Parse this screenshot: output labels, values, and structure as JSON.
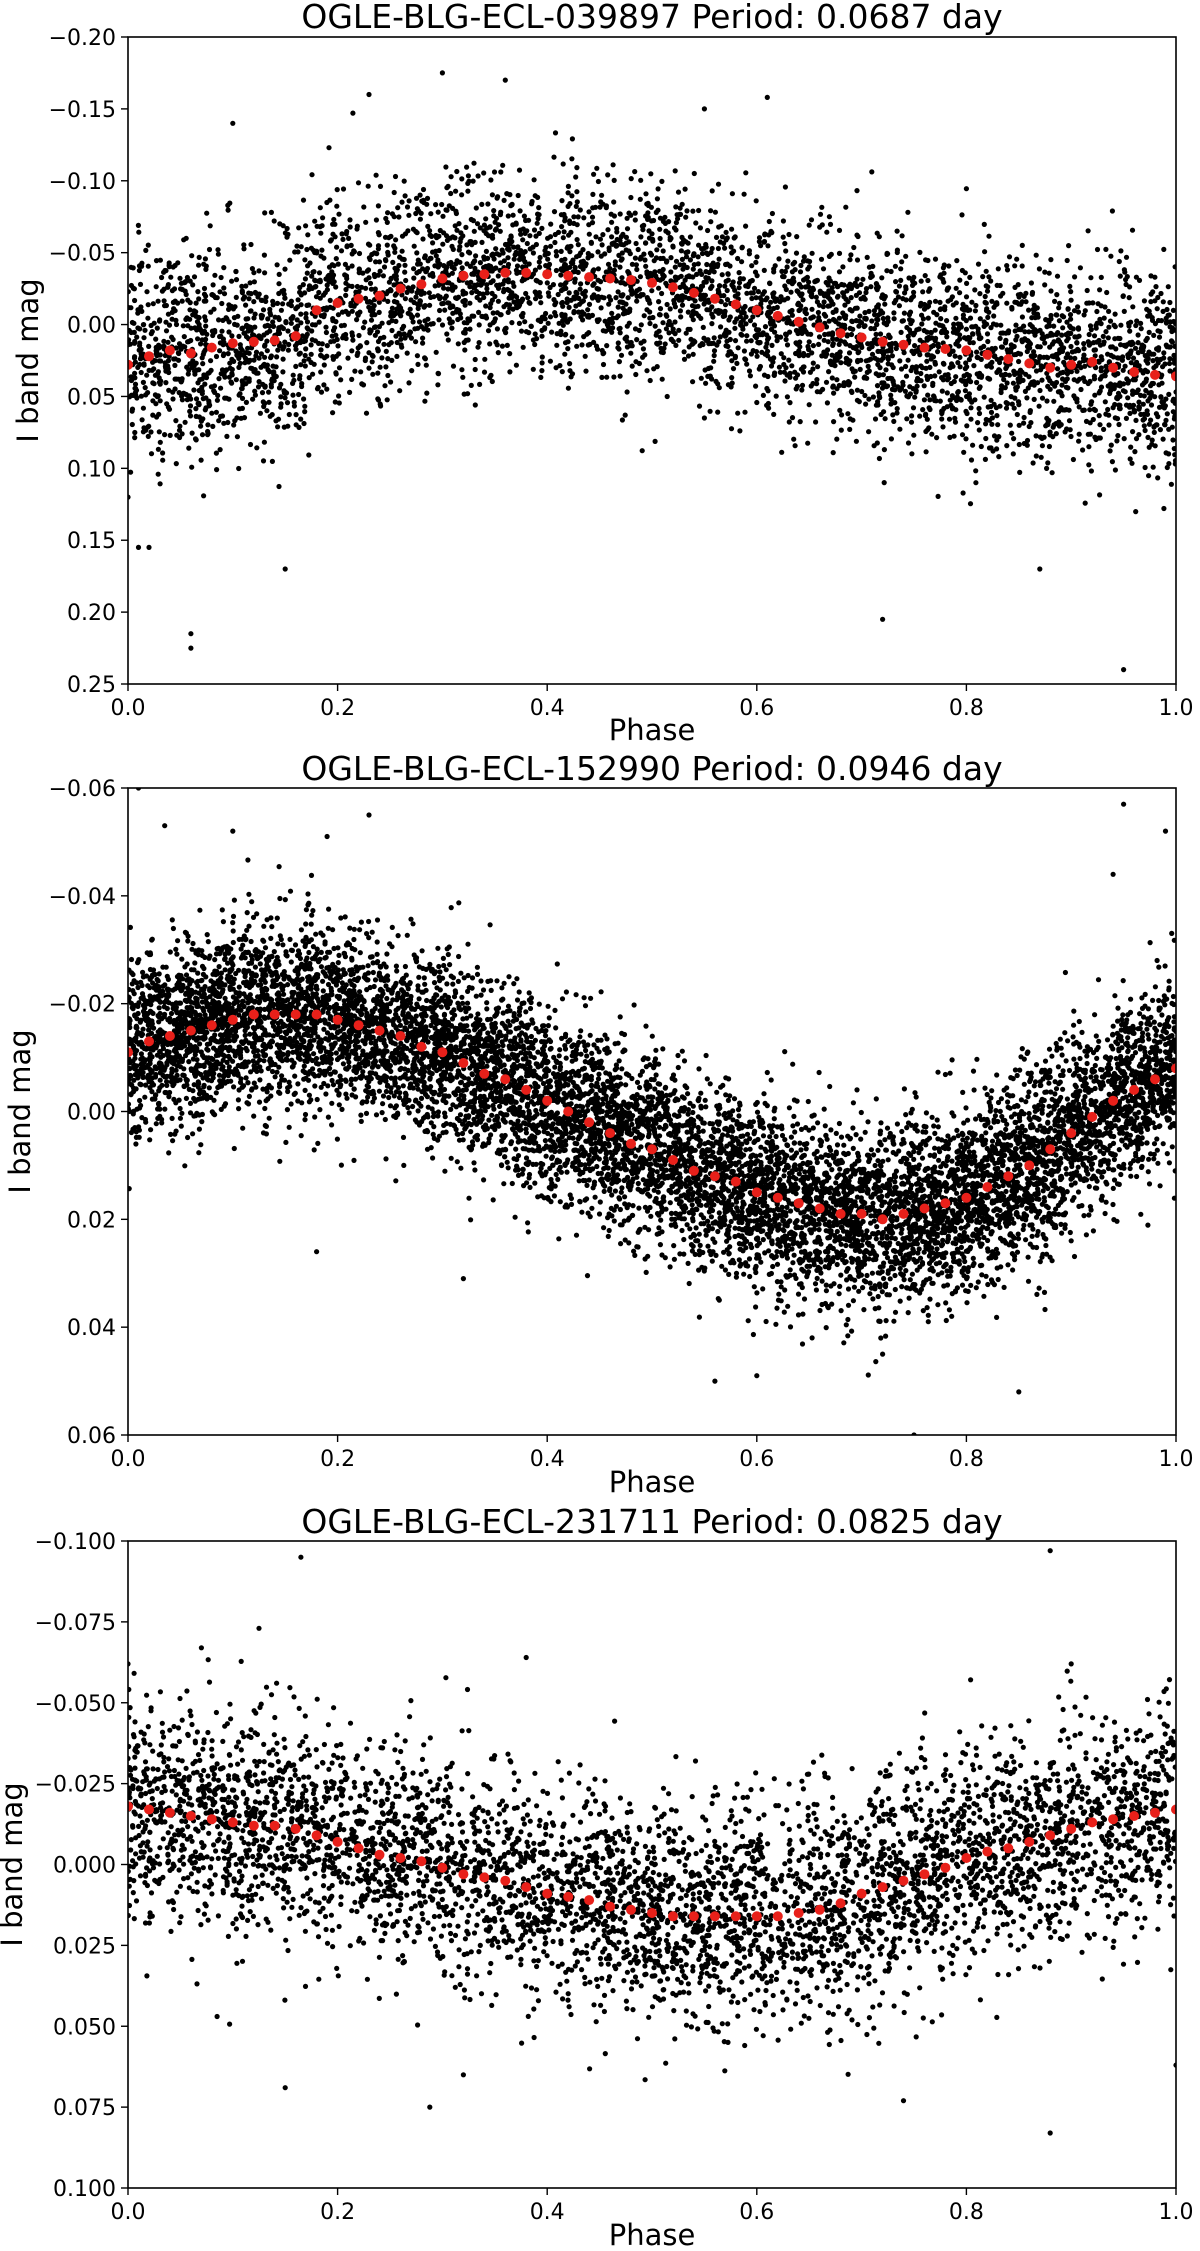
{
  "chart_data": [
    {
      "type": "scatter",
      "title": "OGLE-BLG-ECL-039897 Period: 0.0687 day",
      "xlabel": "Phase",
      "ylabel": "I band mag",
      "xlim": [
        0.0,
        1.0
      ],
      "ylim": [
        -0.2,
        0.25
      ],
      "y_inverted": true,
      "xticks": [
        0.0,
        0.2,
        0.4,
        0.6,
        0.8,
        1.0
      ],
      "xtick_labels": [
        "0.0",
        "0.2",
        "0.4",
        "0.6",
        "0.8",
        "1.0"
      ],
      "yticks": [
        -0.2,
        -0.15,
        -0.1,
        -0.05,
        0.0,
        0.05,
        0.1,
        0.15,
        0.2,
        0.25
      ],
      "ytick_labels": [
        "−0.20",
        "−0.15",
        "−0.10",
        "−0.05",
        "0.00",
        "0.05",
        "0.10",
        "0.15",
        "0.20",
        "0.25"
      ],
      "grid": false,
      "raw_points": {
        "color": "#000000",
        "approx_count": 4800,
        "scatter_std": 0.035,
        "outliers": [
          [
            0.06,
            0.215
          ],
          [
            0.06,
            0.225
          ],
          [
            0.95,
            0.24
          ],
          [
            0.72,
            0.205
          ],
          [
            0.3,
            -0.175
          ],
          [
            0.36,
            -0.17
          ],
          [
            0.23,
            -0.16
          ],
          [
            0.61,
            -0.158
          ],
          [
            0.55,
            -0.15
          ],
          [
            0.01,
            0.155
          ],
          [
            0.02,
            0.155
          ],
          [
            0.15,
            0.17
          ],
          [
            0.87,
            0.17
          ],
          [
            0.0,
            0.12
          ],
          [
            0.1,
            -0.14
          ]
        ]
      },
      "binned_means": {
        "color": "#e8201a",
        "x": [
          0.0,
          0.02,
          0.04,
          0.06,
          0.08,
          0.1,
          0.12,
          0.14,
          0.16,
          0.18,
          0.2,
          0.22,
          0.24,
          0.26,
          0.28,
          0.3,
          0.32,
          0.34,
          0.36,
          0.38,
          0.4,
          0.42,
          0.44,
          0.46,
          0.48,
          0.5,
          0.52,
          0.54,
          0.56,
          0.58,
          0.6,
          0.62,
          0.64,
          0.66,
          0.68,
          0.7,
          0.72,
          0.74,
          0.76,
          0.78,
          0.8,
          0.82,
          0.84,
          0.86,
          0.88,
          0.9,
          0.92,
          0.94,
          0.96,
          0.98,
          1.0
        ],
        "y": [
          0.028,
          0.022,
          0.018,
          0.02,
          0.016,
          0.013,
          0.012,
          0.011,
          0.008,
          -0.01,
          -0.015,
          -0.018,
          -0.02,
          -0.025,
          -0.028,
          -0.032,
          -0.034,
          -0.035,
          -0.036,
          -0.036,
          -0.035,
          -0.034,
          -0.033,
          -0.032,
          -0.031,
          -0.029,
          -0.026,
          -0.022,
          -0.018,
          -0.014,
          -0.01,
          -0.006,
          -0.002,
          0.002,
          0.006,
          0.009,
          0.012,
          0.014,
          0.016,
          0.017,
          0.018,
          0.021,
          0.024,
          0.027,
          0.03,
          0.028,
          0.026,
          0.03,
          0.033,
          0.035,
          0.036
        ]
      }
    },
    {
      "type": "scatter",
      "title": "OGLE-BLG-ECL-152990 Period: 0.0946 day",
      "xlabel": "Phase",
      "ylabel": "I band mag",
      "xlim": [
        0.0,
        1.0
      ],
      "ylim": [
        -0.06,
        0.06
      ],
      "y_inverted": true,
      "xticks": [
        0.0,
        0.2,
        0.4,
        0.6,
        0.8,
        1.0
      ],
      "xtick_labels": [
        "0.0",
        "0.2",
        "0.4",
        "0.6",
        "0.8",
        "1.0"
      ],
      "yticks": [
        -0.06,
        -0.04,
        -0.02,
        0.0,
        0.02,
        0.04,
        0.06
      ],
      "ytick_labels": [
        "−0.06",
        "−0.04",
        "−0.02",
        "0.00",
        "0.02",
        "0.04",
        "0.06"
      ],
      "grid": false,
      "raw_points": {
        "color": "#000000",
        "approx_count": 9500,
        "scatter_std": 0.0085,
        "outliers": [
          [
            0.01,
            -0.06
          ],
          [
            0.035,
            -0.053
          ],
          [
            0.1,
            -0.052
          ],
          [
            0.19,
            -0.051
          ],
          [
            0.23,
            -0.055
          ],
          [
            0.95,
            -0.057
          ],
          [
            0.99,
            -0.052
          ],
          [
            0.85,
            0.052
          ],
          [
            0.75,
            0.06
          ],
          [
            0.72,
            0.045
          ],
          [
            0.56,
            0.05
          ],
          [
            0.6,
            0.049
          ],
          [
            0.32,
            0.031
          ],
          [
            0.18,
            0.026
          ],
          [
            0.94,
            -0.044
          ]
        ]
      },
      "binned_means": {
        "color": "#e8201a",
        "x": [
          0.0,
          0.02,
          0.04,
          0.06,
          0.08,
          0.1,
          0.12,
          0.14,
          0.16,
          0.18,
          0.2,
          0.22,
          0.24,
          0.26,
          0.28,
          0.3,
          0.32,
          0.34,
          0.36,
          0.38,
          0.4,
          0.42,
          0.44,
          0.46,
          0.48,
          0.5,
          0.52,
          0.54,
          0.56,
          0.58,
          0.6,
          0.62,
          0.64,
          0.66,
          0.68,
          0.7,
          0.72,
          0.74,
          0.76,
          0.78,
          0.8,
          0.82,
          0.84,
          0.86,
          0.88,
          0.9,
          0.92,
          0.94,
          0.96,
          0.98,
          1.0
        ],
        "y": [
          -0.011,
          -0.013,
          -0.014,
          -0.015,
          -0.016,
          -0.017,
          -0.018,
          -0.018,
          -0.018,
          -0.018,
          -0.017,
          -0.016,
          -0.015,
          -0.014,
          -0.012,
          -0.011,
          -0.009,
          -0.007,
          -0.006,
          -0.004,
          -0.002,
          0.0,
          0.002,
          0.004,
          0.006,
          0.007,
          0.009,
          0.011,
          0.012,
          0.013,
          0.015,
          0.016,
          0.017,
          0.018,
          0.019,
          0.019,
          0.02,
          0.019,
          0.018,
          0.017,
          0.016,
          0.014,
          0.012,
          0.01,
          0.007,
          0.004,
          0.001,
          -0.002,
          -0.004,
          -0.006,
          -0.008
        ]
      }
    },
    {
      "type": "scatter",
      "title": "OGLE-BLG-ECL-231711 Period: 0.0825 day",
      "xlabel": "Phase",
      "ylabel": "I band mag",
      "xlim": [
        0.0,
        1.0
      ],
      "ylim": [
        -0.1,
        0.1
      ],
      "y_inverted": true,
      "xticks": [
        0.0,
        0.2,
        0.4,
        0.6,
        0.8,
        1.0
      ],
      "xtick_labels": [
        "0.0",
        "0.2",
        "0.4",
        "0.6",
        "0.8",
        "1.0"
      ],
      "yticks": [
        -0.1,
        -0.075,
        -0.05,
        -0.025,
        0.0,
        0.025,
        0.05,
        0.075,
        0.1
      ],
      "ytick_labels": [
        "−0.100",
        "−0.075",
        "−0.050",
        "−0.025",
        "0.000",
        "0.025",
        "0.050",
        "0.075",
        "0.100"
      ],
      "grid": false,
      "raw_points": {
        "color": "#000000",
        "approx_count": 4800,
        "scatter_std": 0.017,
        "outliers": [
          [
            0.165,
            -0.095
          ],
          [
            0.88,
            -0.097
          ],
          [
            0.125,
            -0.073
          ],
          [
            0.07,
            -0.067
          ],
          [
            0.0,
            -0.062
          ],
          [
            0.38,
            -0.064
          ],
          [
            0.9,
            -0.062
          ],
          [
            0.88,
            0.083
          ],
          [
            0.15,
            0.069
          ],
          [
            0.74,
            0.073
          ],
          [
            0.32,
            0.065
          ],
          [
            1.0,
            0.062
          ],
          [
            0.085,
            0.047
          ]
        ]
      },
      "binned_means": {
        "color": "#e8201a",
        "x": [
          0.0,
          0.02,
          0.04,
          0.06,
          0.08,
          0.1,
          0.12,
          0.14,
          0.16,
          0.18,
          0.2,
          0.22,
          0.24,
          0.26,
          0.28,
          0.3,
          0.32,
          0.34,
          0.36,
          0.38,
          0.4,
          0.42,
          0.44,
          0.46,
          0.48,
          0.5,
          0.52,
          0.54,
          0.56,
          0.58,
          0.6,
          0.62,
          0.64,
          0.66,
          0.68,
          0.7,
          0.72,
          0.74,
          0.76,
          0.78,
          0.8,
          0.82,
          0.84,
          0.86,
          0.88,
          0.9,
          0.92,
          0.94,
          0.96,
          0.98,
          1.0
        ],
        "y": [
          -0.018,
          -0.017,
          -0.016,
          -0.015,
          -0.014,
          -0.013,
          -0.012,
          -0.012,
          -0.011,
          -0.009,
          -0.007,
          -0.005,
          -0.003,
          -0.002,
          -0.001,
          0.001,
          0.003,
          0.004,
          0.005,
          0.007,
          0.009,
          0.01,
          0.011,
          0.013,
          0.014,
          0.015,
          0.016,
          0.016,
          0.016,
          0.016,
          0.016,
          0.016,
          0.015,
          0.014,
          0.012,
          0.009,
          0.007,
          0.005,
          0.003,
          0.001,
          -0.002,
          -0.004,
          -0.005,
          -0.007,
          -0.009,
          -0.011,
          -0.013,
          -0.014,
          -0.015,
          -0.016,
          -0.017
        ]
      }
    }
  ]
}
